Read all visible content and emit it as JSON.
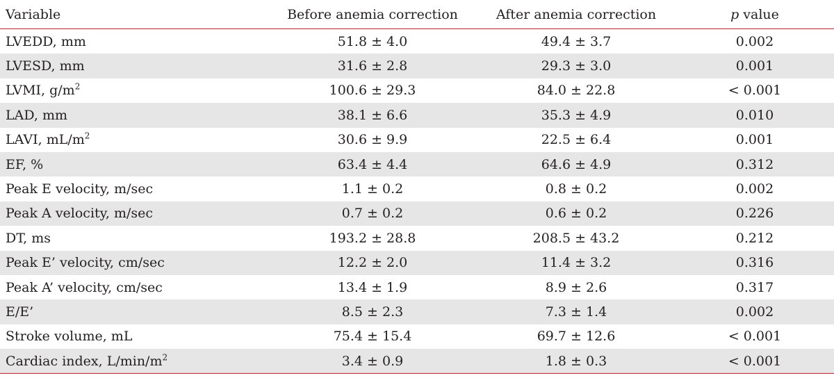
{
  "table": {
    "headers": {
      "variable": "Variable",
      "before": "Before anemia correction",
      "after": "After anemia correction",
      "p_symbol": "p",
      "p_suffix": " value"
    },
    "rows": [
      {
        "label": "LVEDD, mm",
        "sup": "",
        "before": "51.8 ± 4.0",
        "after": "49.4 ± 3.7",
        "p": "0.002"
      },
      {
        "label": "LVESD, mm",
        "sup": "",
        "before": "31.6 ± 2.8",
        "after": "29.3 ± 3.0",
        "p": "0.001"
      },
      {
        "label": "LVMI, g/m",
        "sup": "2",
        "before": "100.6 ± 29.3",
        "after": "84.0 ± 22.8",
        "p": "< 0.001"
      },
      {
        "label": "LAD, mm",
        "sup": "",
        "before": "38.1 ± 6.6",
        "after": "35.3 ± 4.9",
        "p": "0.010"
      },
      {
        "label": "LAVI, mL/m",
        "sup": "2",
        "before": "30.6 ± 9.9",
        "after": "22.5 ± 6.4",
        "p": "0.001"
      },
      {
        "label": "EF, %",
        "sup": "",
        "before": "63.4 ± 4.4",
        "after": "64.6 ± 4.9",
        "p": "0.312"
      },
      {
        "label": "Peak E velocity, m/sec",
        "sup": "",
        "before": "1.1 ± 0.2",
        "after": "0.8 ± 0.2",
        "p": "0.002"
      },
      {
        "label": "Peak A velocity, m/sec",
        "sup": "",
        "before": "0.7 ± 0.2",
        "after": "0.6 ± 0.2",
        "p": "0.226"
      },
      {
        "label": "DT, ms",
        "sup": "",
        "before": "193.2 ± 28.8",
        "after": "208.5 ± 43.2",
        "p": "0.212"
      },
      {
        "label": "Peak E’ velocity, cm/sec",
        "sup": "",
        "before": "12.2 ± 2.0",
        "after": "11.4 ± 3.2",
        "p": "0.316"
      },
      {
        "label": "Peak A’ velocity, cm/sec",
        "sup": "",
        "before": "13.4 ± 1.9",
        "after": "8.9 ± 2.6",
        "p": "0.317"
      },
      {
        "label": "E/E’",
        "sup": "",
        "before": "8.5 ± 2.3",
        "after": "7.3 ± 1.4",
        "p": "0.002"
      },
      {
        "label": "Stroke volume, mL",
        "sup": "",
        "before": "75.4 ± 15.4",
        "after": "69.7 ± 12.6",
        "p": "< 0.001"
      },
      {
        "label": "Cardiac index, L/min/m",
        "sup": "2",
        "before": "3.4 ± 0.9",
        "after": "1.8 ± 0.3",
        "p": "< 0.001"
      }
    ]
  },
  "colors": {
    "rule": "#c0202e",
    "stripe": "#e6e6e7",
    "text": "#231f20"
  }
}
